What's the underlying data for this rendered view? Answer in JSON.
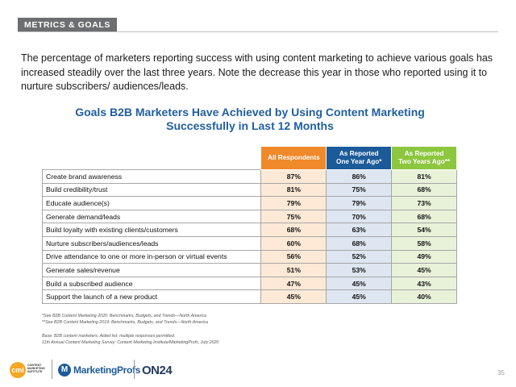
{
  "section_tag": "METRICS & GOALS",
  "intro_text": "The percentage of marketers reporting success with using content marketing to achieve various goals has increased steadily over the last three years. Note the decrease this year in those who reported using it to nurture subscribers/ audiences/leads.",
  "chart_title_line1": "Goals B2B Marketers Have Achieved by Using Content Marketing",
  "chart_title_line2": "Successfully in Last 12 Months",
  "table": {
    "headers": {
      "all": "All Respondents",
      "one_year_l1": "As Reported",
      "one_year_l2": "One Year Ago*",
      "two_years_l1": "As Reported",
      "two_years_l2": "Two Years Ago**"
    },
    "rows": [
      {
        "goal": "Create brand awareness",
        "all": "87%",
        "one": "86%",
        "two": "81%"
      },
      {
        "goal": "Build credibility/trust",
        "all": "81%",
        "one": "75%",
        "two": "68%"
      },
      {
        "goal": "Educate audience(s)",
        "all": "79%",
        "one": "79%",
        "two": "73%"
      },
      {
        "goal": "Generate demand/leads",
        "all": "75%",
        "one": "70%",
        "two": "68%"
      },
      {
        "goal": "Build loyalty with existing clients/customers",
        "all": "68%",
        "one": "63%",
        "two": "54%"
      },
      {
        "goal": "Nurture subscribers/audiences/leads",
        "all": "60%",
        "one": "68%",
        "two": "58%"
      },
      {
        "goal": "Drive attendance to one or more in-person or virtual events",
        "all": "56%",
        "one": "52%",
        "two": "49%"
      },
      {
        "goal": "Generate sales/revenue",
        "all": "51%",
        "one": "53%",
        "two": "45%"
      },
      {
        "goal": "Build a subscribed audience",
        "all": "47%",
        "one": "45%",
        "two": "43%"
      },
      {
        "goal": "Support the launch of a new product",
        "all": "45%",
        "one": "45%",
        "two": "40%"
      }
    ]
  },
  "footnotes": {
    "note1": "*See B2B Content Marketing 2020: Benchmarks, Budgets, and Trends—North America",
    "note2": "**See B2B Content Marketing 2019: Benchmarks, Budgets, and Trends—North America",
    "base": "Base: B2B content marketers. Aided list; multiple responses permitted.",
    "survey": "11th Annual Content Marketing Survey: Content Marketing Institute/MarketingProfs, July 2020"
  },
  "logos": {
    "cmi_mark": "cmi",
    "cmi_wordmark": "CONTENT MARKETING INSTITUTE",
    "marketingprofs": "MarketingProfs",
    "marketingprofs_mark": "M",
    "on24": "ON24"
  },
  "page_number": "35",
  "colors": {
    "header_all": "#f0892a",
    "header_one_year": "#1c5b99",
    "header_two_years": "#8dc63f",
    "title_blue": "#1f5f9e"
  }
}
